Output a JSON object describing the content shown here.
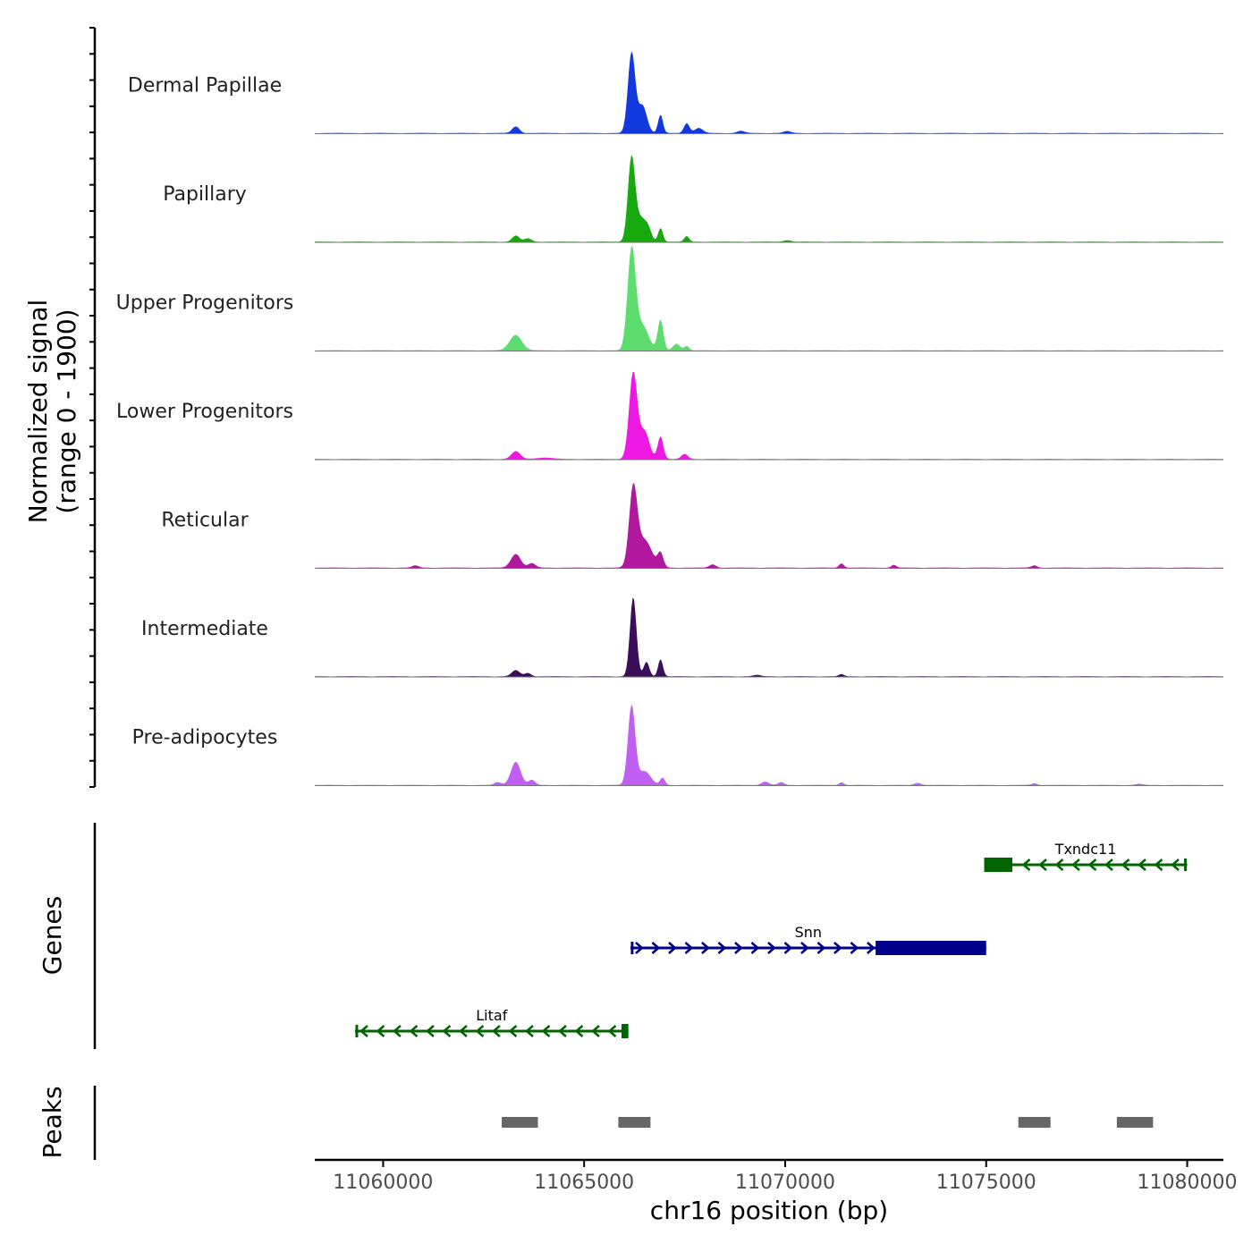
{
  "chart_data": {
    "type": "area",
    "title": "",
    "xlabel": "chr16 position (bp)",
    "ylabel": "Normalized signal",
    "ylabel_range": "(range 0 - 1900)",
    "ylim": [
      0,
      1900
    ],
    "xlim": [
      11058300,
      11080900
    ],
    "x_ticks": [
      11060000,
      11065000,
      11070000,
      11075000,
      11080000
    ],
    "x_tick_labels": [
      "11060000",
      "11065000",
      "11070000",
      "11075000",
      "11080000"
    ],
    "series": [
      {
        "name": "Dermal Papillae",
        "color": "#1239de",
        "peaks": [
          [
            11063300,
            120,
            90
          ],
          [
            11066180,
            1450,
            90
          ],
          [
            11066450,
            500,
            110
          ],
          [
            11066900,
            330,
            60
          ],
          [
            11067550,
            180,
            70
          ],
          [
            11067850,
            90,
            100
          ],
          [
            11068900,
            40,
            90
          ],
          [
            11070050,
            35,
            90
          ]
        ]
      },
      {
        "name": "Papillary",
        "color": "#17a90e",
        "peaks": [
          [
            11063300,
            110,
            90
          ],
          [
            11063600,
            60,
            90
          ],
          [
            11066180,
            1530,
            90
          ],
          [
            11066420,
            400,
            110
          ],
          [
            11066600,
            200,
            80
          ],
          [
            11066900,
            250,
            60
          ],
          [
            11067550,
            100,
            60
          ],
          [
            11070050,
            30,
            90
          ]
        ]
      },
      {
        "name": "Upper Progenitors",
        "color": "#5cdd6d",
        "peaks": [
          [
            11063300,
            280,
            150
          ],
          [
            11066180,
            1800,
            100
          ],
          [
            11066450,
            450,
            150
          ],
          [
            11066900,
            550,
            70
          ],
          [
            11067300,
            120,
            90
          ],
          [
            11067550,
            80,
            60
          ]
        ]
      },
      {
        "name": "Lower Progenitors",
        "color": "#ef18e2",
        "peaks": [
          [
            11063300,
            140,
            110
          ],
          [
            11066220,
            1550,
            100
          ],
          [
            11066500,
            500,
            120
          ],
          [
            11066900,
            410,
            70
          ],
          [
            11067500,
            90,
            80
          ],
          [
            11064000,
            25,
            200
          ]
        ]
      },
      {
        "name": "Reticular",
        "color": "#b0189d",
        "peaks": [
          [
            11060800,
            40,
            80
          ],
          [
            11063300,
            250,
            120
          ],
          [
            11063700,
            80,
            90
          ],
          [
            11066220,
            1380,
            100
          ],
          [
            11066500,
            500,
            180
          ],
          [
            11066900,
            250,
            70
          ],
          [
            11068200,
            60,
            80
          ],
          [
            11071400,
            80,
            60
          ],
          [
            11072700,
            50,
            60
          ],
          [
            11076200,
            40,
            70
          ]
        ]
      },
      {
        "name": "Intermediate",
        "color": "#3b0d5b",
        "peaks": [
          [
            11063300,
            110,
            100
          ],
          [
            11063600,
            60,
            80
          ],
          [
            11066220,
            1430,
            80
          ],
          [
            11066550,
            260,
            70
          ],
          [
            11066900,
            310,
            60
          ],
          [
            11071400,
            40,
            60
          ],
          [
            11069300,
            25,
            90
          ]
        ]
      },
      {
        "name": "Pre-adipocytes",
        "color": "#c05ff2",
        "peaks": [
          [
            11063300,
            420,
            120
          ],
          [
            11062850,
            50,
            80
          ],
          [
            11063700,
            90,
            80
          ],
          [
            11066180,
            1430,
            90
          ],
          [
            11066500,
            250,
            150
          ],
          [
            11066950,
            130,
            60
          ],
          [
            11069500,
            60,
            90
          ],
          [
            11069900,
            50,
            70
          ],
          [
            11071400,
            50,
            60
          ],
          [
            11073300,
            40,
            80
          ],
          [
            11076200,
            30,
            70
          ],
          [
            11078800,
            20,
            90
          ]
        ]
      }
    ],
    "genes_track_label": "Genes",
    "genes": [
      {
        "name": "Txndc11",
        "start": 11074950,
        "end": 11080000,
        "strand": "-",
        "color": "#006400",
        "row": 0,
        "thick_start": 11074950,
        "thick_end": 11075650
      },
      {
        "name": "Snn",
        "start": 11066150,
        "end": 11075000,
        "strand": "+",
        "color": "#00008b",
        "row": 1,
        "thick_start": 11072250,
        "thick_end": 11075000
      },
      {
        "name": "Litaf",
        "start": 11059300,
        "end": 11066100,
        "strand": "-",
        "color": "#006400",
        "row": 2,
        "thick_start": 11065930,
        "thick_end": 11066100
      }
    ],
    "peaks_track_label": "Peaks",
    "peaks_track": [
      [
        11062950,
        11063850
      ],
      [
        11065850,
        11066650
      ],
      [
        11075800,
        11076600
      ],
      [
        11078250,
        11079150
      ]
    ],
    "peak_color": "#666666"
  }
}
